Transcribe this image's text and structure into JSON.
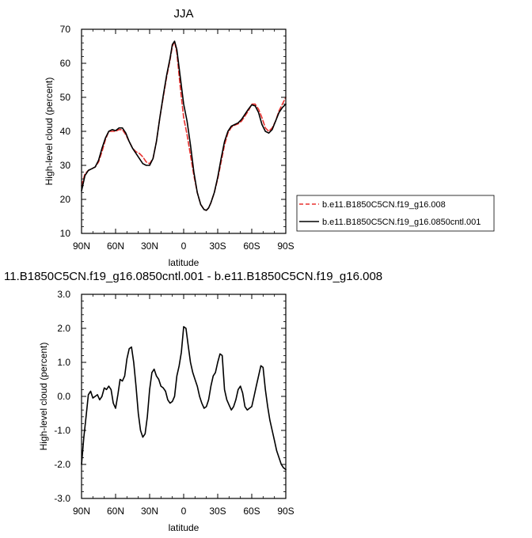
{
  "chart_data": [
    {
      "type": "line",
      "title": "JJA",
      "xlabel": "latitude",
      "ylabel": "High-level cloud (percent)",
      "xlim": [
        90,
        -90
      ],
      "ylim": [
        10,
        70
      ],
      "x_ticks": [
        {
          "v": 90,
          "label": "90N"
        },
        {
          "v": 60,
          "label": "60N"
        },
        {
          "v": 30,
          "label": "30N"
        },
        {
          "v": 0,
          "label": "0"
        },
        {
          "v": -30,
          "label": "30S"
        },
        {
          "v": -60,
          "label": "60S"
        },
        {
          "v": -90,
          "label": "90S"
        }
      ],
      "y_ticks": [
        10,
        20,
        30,
        40,
        50,
        60,
        70
      ],
      "legend_position": "right",
      "series": [
        {
          "name": "b.e11.B1850C5CN.f19_g16.008",
          "color": "#e8312f",
          "dash": "dashed",
          "x": [
            90,
            87,
            84,
            81,
            78,
            75,
            72,
            69,
            66,
            63,
            60,
            57,
            54,
            51,
            48,
            45,
            42,
            39,
            36,
            33,
            30,
            27,
            24,
            21,
            18,
            15,
            12,
            10,
            8,
            6,
            3,
            0,
            -3,
            -6,
            -9,
            -12,
            -15,
            -18,
            -20,
            -22,
            -24,
            -27,
            -30,
            -33,
            -36,
            -39,
            -42,
            -45,
            -48,
            -51,
            -54,
            -57,
            -60,
            -63,
            -66,
            -69,
            -72,
            -75,
            -78,
            -81,
            -84,
            -87,
            -90
          ],
          "values": [
            24,
            27.5,
            28.5,
            29,
            29.5,
            31,
            34,
            37.5,
            40,
            40,
            40,
            40.5,
            40.5,
            39,
            37,
            35,
            34,
            33.5,
            32.5,
            31,
            30.5,
            32,
            37,
            44,
            50,
            56,
            61,
            65,
            66.5,
            63,
            53,
            44,
            39,
            33,
            27,
            22,
            18.5,
            17,
            16.8,
            17.5,
            19,
            22,
            26,
            31,
            36,
            39.5,
            41.2,
            41.8,
            42.2,
            43,
            44.5,
            46,
            48,
            48,
            46.5,
            44,
            41,
            40,
            41,
            43,
            46,
            48,
            50
          ]
        },
        {
          "name": "b.e11.B1850C5CN.f19_g16.0850cntl.001",
          "color": "#000000",
          "dash": "solid",
          "x": [
            90,
            87,
            84,
            81,
            78,
            75,
            72,
            69,
            66,
            63,
            60,
            57,
            54,
            51,
            48,
            45,
            42,
            39,
            36,
            33,
            30,
            27,
            24,
            21,
            18,
            15,
            12,
            10,
            8,
            6,
            3,
            0,
            -3,
            -6,
            -9,
            -12,
            -15,
            -18,
            -20,
            -22,
            -24,
            -27,
            -30,
            -33,
            -36,
            -39,
            -42,
            -45,
            -48,
            -51,
            -54,
            -57,
            -60,
            -63,
            -66,
            -69,
            -72,
            -75,
            -78,
            -81,
            -84,
            -87,
            -90
          ],
          "values": [
            22.5,
            27,
            28.5,
            29,
            29.5,
            31.5,
            35,
            38,
            40,
            40.5,
            40.2,
            41,
            41,
            39.5,
            37,
            35,
            33.5,
            32,
            30.5,
            30,
            30,
            32,
            37,
            44,
            50.5,
            56.5,
            61.5,
            65.5,
            66.5,
            64,
            56,
            48,
            43,
            36,
            28,
            22,
            18.5,
            17,
            16.8,
            17.5,
            19,
            22,
            26.5,
            32,
            37,
            40,
            41.5,
            42,
            42.5,
            43.5,
            45,
            46.5,
            47.8,
            47.5,
            45.5,
            42,
            40,
            39.5,
            40.5,
            43,
            45.5,
            47,
            48
          ]
        }
      ]
    },
    {
      "type": "line",
      "title": "11.B1850C5CN.f19_g16.0850cntl.001 - b.e11.B1850C5CN.f19_g16.008",
      "xlabel": "latitude",
      "ylabel": "High-level cloud (percent)",
      "xlim": [
        90,
        -90
      ],
      "ylim": [
        -3.0,
        3.0
      ],
      "x_ticks": [
        {
          "v": 90,
          "label": "90N"
        },
        {
          "v": 60,
          "label": "60N"
        },
        {
          "v": 30,
          "label": "30N"
        },
        {
          "v": 0,
          "label": "0"
        },
        {
          "v": -30,
          "label": "30S"
        },
        {
          "v": -60,
          "label": "60S"
        },
        {
          "v": -90,
          "label": "90S"
        }
      ],
      "y_ticks": [
        {
          "v": 3.0,
          "label": "3.0"
        },
        {
          "v": 2.0,
          "label": "2.0"
        },
        {
          "v": 1.0,
          "label": "1.0"
        },
        {
          "v": 0.0,
          "label": "0.0"
        },
        {
          "v": -1.0,
          "label": "-1.0"
        },
        {
          "v": -2.0,
          "label": "-2.0"
        },
        {
          "v": -3.0,
          "label": "-3.0"
        }
      ],
      "series": [
        {
          "color": "#000000",
          "dash": "solid",
          "x": [
            90,
            88,
            86,
            84,
            82,
            80,
            78,
            76,
            74,
            72,
            70,
            68,
            66,
            64,
            62,
            60,
            58,
            56,
            54,
            52,
            50,
            48,
            46,
            44,
            42,
            40,
            38,
            36,
            34,
            32,
            30,
            28,
            26,
            24,
            22,
            20,
            18,
            16,
            14,
            12,
            10,
            8,
            6,
            4,
            2,
            0,
            -2,
            -4,
            -6,
            -8,
            -10,
            -12,
            -14,
            -16,
            -18,
            -20,
            -22,
            -24,
            -26,
            -28,
            -30,
            -32,
            -34,
            -36,
            -38,
            -40,
            -42,
            -44,
            -46,
            -48,
            -50,
            -52,
            -54,
            -56,
            -58,
            -60,
            -62,
            -64,
            -66,
            -68,
            -70,
            -72,
            -74,
            -76,
            -78,
            -80,
            -82,
            -84,
            -86,
            -88,
            -90
          ],
          "values": [
            -2.0,
            -1.2,
            -0.6,
            0.05,
            0.15,
            -0.05,
            0.0,
            0.05,
            -0.1,
            0.0,
            0.25,
            0.2,
            0.3,
            0.2,
            -0.2,
            -0.35,
            0.05,
            0.5,
            0.45,
            0.6,
            1.1,
            1.4,
            1.45,
            1.0,
            0.3,
            -0.5,
            -1.0,
            -1.2,
            -1.1,
            -0.6,
            0.2,
            0.7,
            0.8,
            0.6,
            0.5,
            0.3,
            0.25,
            0.15,
            -0.1,
            -0.2,
            -0.15,
            0.0,
            0.6,
            0.9,
            1.3,
            2.05,
            2.0,
            1.5,
            1.0,
            0.7,
            0.5,
            0.3,
            0.0,
            -0.2,
            -0.35,
            -0.3,
            -0.1,
            0.3,
            0.6,
            0.7,
            1.0,
            1.25,
            1.2,
            0.2,
            -0.1,
            -0.25,
            -0.4,
            -0.3,
            -0.1,
            0.2,
            0.3,
            0.1,
            -0.3,
            -0.4,
            -0.35,
            -0.3,
            0.0,
            0.3,
            0.6,
            0.9,
            0.85,
            0.2,
            -0.3,
            -0.7,
            -1.0,
            -1.3,
            -1.6,
            -1.8,
            -2.0,
            -2.1,
            -2.15
          ]
        }
      ]
    }
  ]
}
